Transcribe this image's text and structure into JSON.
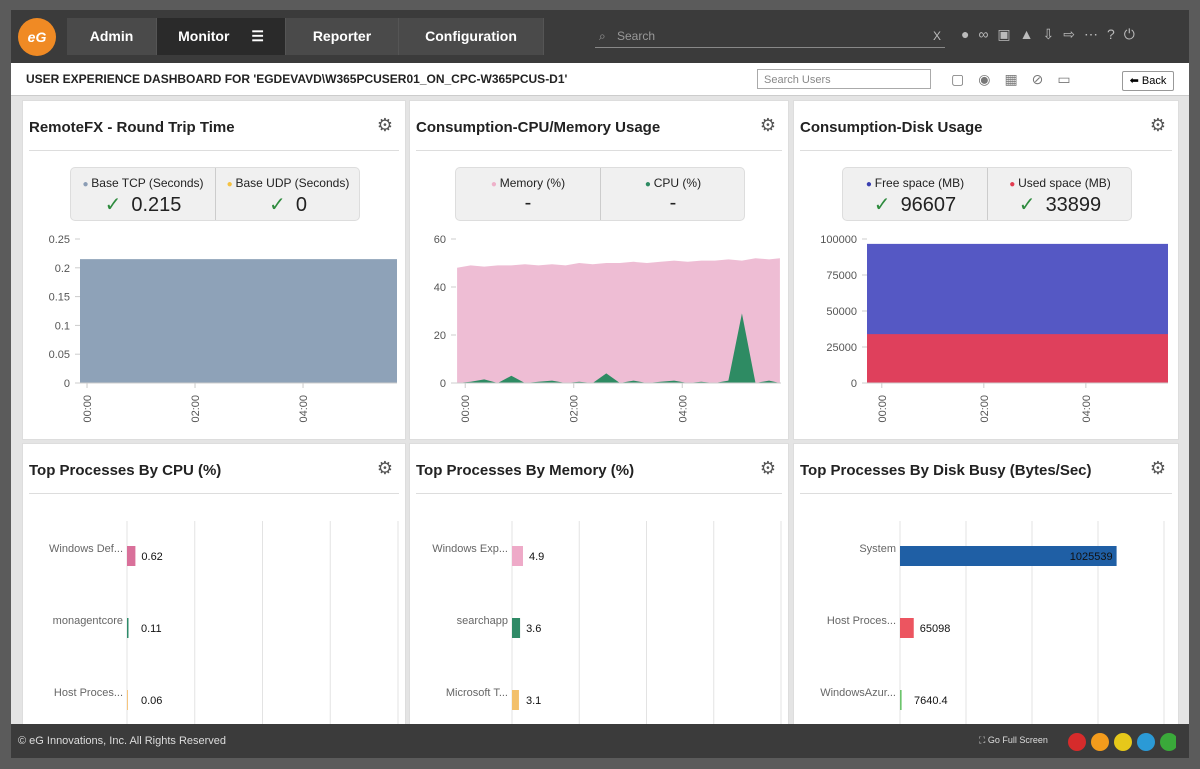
{
  "nav": {
    "items": [
      "Admin",
      "Monitor",
      "Reporter",
      "Configuration"
    ],
    "search_placeholder": "Search"
  },
  "header": {
    "title": "USER EXPERIENCE DASHBOARD FOR 'EGDEVAVD\\W365PCUSER01_ON_CPC-W365PCUS-D1'",
    "search_placeholder": "Search Users",
    "back": "Back"
  },
  "panels": [
    {
      "title": "RemoteFX - Round Trip Time",
      "summary": [
        {
          "name": "Base TCP (Seconds)",
          "color": "#8b9db5",
          "value": 0.215
        },
        {
          "name": "Base UDP (Seconds)",
          "color": "#f5c242",
          "value": 0
        }
      ],
      "chart": {
        "type": "area",
        "x": [
          -0.13,
          5.74
        ],
        "xlim": [
          -0.13,
          5.74
        ],
        "xticks": [
          {
            "value": 0,
            "label": "00:00"
          },
          {
            "value": 2,
            "label": "02:00"
          },
          {
            "value": 4,
            "label": "04:00"
          }
        ],
        "ylim": [
          0,
          0.25
        ],
        "yticks": [
          0,
          0.05,
          0.1,
          0.15,
          0.2,
          0.25
        ],
        "series": [
          {
            "color": "#8ea2b8",
            "values": [
              0.215,
              0.215
            ]
          }
        ]
      }
    },
    {
      "title": "Consumption-CPU/Memory Usage",
      "summary": [
        {
          "name": "Memory (%)",
          "color": "#eeb1c9",
          "value": "-"
        },
        {
          "name": "CPU (%)",
          "color": "#2e8b63",
          "value": "-"
        }
      ],
      "chart": {
        "type": "area",
        "x": [
          -0.15,
          0.1,
          0.35,
          0.6,
          0.85,
          1.1,
          1.35,
          1.6,
          1.85,
          2.1,
          2.35,
          2.6,
          2.85,
          3.1,
          3.35,
          3.6,
          3.85,
          4.1,
          4.35,
          4.6,
          4.85,
          5.1,
          5.35,
          5.6,
          5.8
        ],
        "xlim": [
          -0.17,
          5.82
        ],
        "xticks": [
          {
            "value": 0,
            "label": "00:00"
          },
          {
            "value": 2,
            "label": "02:00"
          },
          {
            "value": 4,
            "label": "04:00"
          }
        ],
        "ylim": [
          0,
          60
        ],
        "yticks": [
          0,
          20,
          40,
          60
        ],
        "series": [
          {
            "color": "#eebdd4",
            "values": [
              48,
              49,
              48.5,
              49,
              49,
              49.5,
              49,
              49.5,
              49,
              50,
              49.5,
              50,
              50,
              50.5,
              50,
              50.5,
              51,
              50.5,
              51,
              51,
              51.5,
              51,
              52,
              51.5,
              52
            ]
          },
          {
            "color": "#2e8b63",
            "values": [
              0,
              0.5,
              1.5,
              0,
              3,
              0,
              0.5,
              1,
              0,
              0.5,
              0,
              4,
              0,
              1,
              0,
              0.5,
              1,
              0,
              0.5,
              0,
              1,
              29,
              0,
              1,
              0
            ]
          }
        ]
      }
    },
    {
      "title": "Consumption-Disk Usage",
      "summary": [
        {
          "name": "Free space (MB)",
          "color": "#3a3fb0",
          "value": 96607
        },
        {
          "name": "Used space (MB)",
          "color": "#e23c50",
          "value": 33899
        }
      ],
      "chart": {
        "type": "area",
        "x": [
          -0.29,
          5.61
        ],
        "xlim": [
          -0.29,
          5.61
        ],
        "xticks": [
          {
            "value": 0,
            "label": "00:00"
          },
          {
            "value": 2,
            "label": "02:00"
          },
          {
            "value": 4,
            "label": "04:00"
          }
        ],
        "ylim": [
          0,
          100000
        ],
        "yticks": [
          0,
          25000,
          50000,
          75000,
          100000
        ],
        "series": [
          {
            "color": "#5558c4",
            "values": [
              96607,
              96607
            ]
          },
          {
            "color": "#df405c",
            "values": [
              33899,
              33899
            ]
          }
        ]
      }
    },
    {
      "title": "Top Processes By CPU (%)",
      "chart": {
        "type": "hbar",
        "xlim": [
          0,
          20
        ],
        "categories": [
          "Windows Def...",
          "monagentcore",
          "Host Proces..."
        ],
        "values": [
          0.62,
          0.11,
          0.06
        ],
        "colors": [
          "#d9709a",
          "#2e8b6a",
          "#f4b860"
        ]
      }
    },
    {
      "title": "Top Processes By Memory (%)",
      "chart": {
        "type": "hbar",
        "xlim": [
          0,
          120
        ],
        "categories": [
          "Windows Exp...",
          "searchapp",
          "Microsoft T..."
        ],
        "values": [
          4.9,
          3.6,
          3.1
        ],
        "colors": [
          "#eeaac8",
          "#2f8a66",
          "#f3c06b"
        ]
      }
    },
    {
      "title": "Top Processes By Disk Busy (Bytes/Sec)",
      "chart": {
        "type": "hbar",
        "xlim": [
          0,
          1250000
        ],
        "categories": [
          "System",
          "Host Proces...",
          "WindowsAzur..."
        ],
        "values": [
          1025539,
          65098,
          7640.4
        ],
        "colors": [
          "#1f5fa5",
          "#ec5560",
          "#6cc46c"
        ]
      }
    }
  ],
  "footer": {
    "copyright": "© eG Innovations, Inc. All Rights Reserved",
    "fullscreen": "Go Full Screen"
  }
}
